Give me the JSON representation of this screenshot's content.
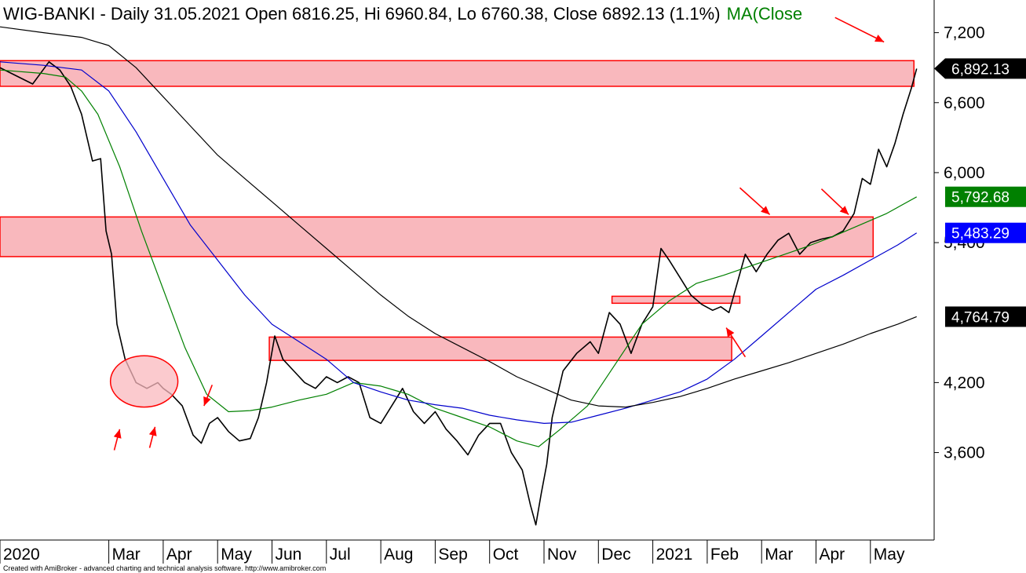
{
  "title": {
    "main": "WIG-BANKI - Daily 31.05.2021 Open 6816.25, Hi 6960.84, Lo 6760.38, Close 6892.13 (1.1%)",
    "ma": "MA(Close"
  },
  "credit": "Created with AmiBroker - advanced charting and technical analysis software. http://www.amibroker.com",
  "colors": {
    "price": "#000000",
    "ma_green": "#008000",
    "ma_blue": "#0000cc",
    "ma_black": "#000000",
    "zone_fill": "#f9b8bd",
    "zone_stroke": "#ff0000",
    "arrow": "#ff0000"
  },
  "chart_data": {
    "type": "line",
    "title": "WIG-BANKI - Daily 31.05.2021",
    "xlabel": "",
    "ylabel": "",
    "ylim": [
      2850,
      7480
    ],
    "y_ticks": [
      {
        "value": 7200,
        "label": "7,200"
      },
      {
        "value": 6600,
        "label": "6,600"
      },
      {
        "value": 6000,
        "label": "6,000"
      },
      {
        "value": 5400,
        "label": "5,400"
      },
      {
        "value": 4200,
        "label": "4,200"
      },
      {
        "value": 3600,
        "label": "3,600"
      }
    ],
    "months": [
      {
        "label": "2020",
        "t": 0
      },
      {
        "label": "Mar",
        "t": 2.0
      },
      {
        "label": "Apr",
        "t": 3.0
      },
      {
        "label": "May",
        "t": 4.0
      },
      {
        "label": "Jun",
        "t": 5.0
      },
      {
        "label": "Jul",
        "t": 6.0
      },
      {
        "label": "Aug",
        "t": 7.0
      },
      {
        "label": "Sep",
        "t": 8.0
      },
      {
        "label": "Oct",
        "t": 9.0
      },
      {
        "label": "Nov",
        "t": 10.0
      },
      {
        "label": "Dec",
        "t": 11.0
      },
      {
        "label": "2021",
        "t": 12.0
      },
      {
        "label": "Feb",
        "t": 13.0
      },
      {
        "label": "Mar",
        "t": 14.0
      },
      {
        "label": "Apr",
        "t": 15.0
      },
      {
        "label": "May",
        "t": 16.0
      }
    ],
    "t_range": [
      0,
      17.5
    ],
    "value_badges": [
      {
        "label": "6,892.13",
        "value": 6892.13,
        "bg": "#000000",
        "fg": "#ffffff",
        "pointer": true
      },
      {
        "label": "5,792.68",
        "value": 5792.68,
        "bg": "#008000",
        "fg": "#ffffff",
        "pointer": false
      },
      {
        "label": "5,483.29",
        "value": 5483.29,
        "bg": "#0000ff",
        "fg": "#ffffff",
        "pointer": false
      },
      {
        "label": "4,764.79",
        "value": 4764.79,
        "bg": "#000000",
        "fg": "#ffffff",
        "pointer": false
      }
    ],
    "series": [
      {
        "key": "price",
        "points": [
          [
            0,
            6900
          ],
          [
            0.3,
            6830
          ],
          [
            0.6,
            6760
          ],
          [
            0.9,
            6950
          ],
          [
            1.1,
            6880
          ],
          [
            1.3,
            6740
          ],
          [
            1.5,
            6500
          ],
          [
            1.7,
            6100
          ],
          [
            1.85,
            6120
          ],
          [
            1.95,
            5500
          ],
          [
            2.05,
            5300
          ],
          [
            2.15,
            4700
          ],
          [
            2.3,
            4400
          ],
          [
            2.5,
            4200
          ],
          [
            2.7,
            4150
          ],
          [
            2.9,
            4200
          ],
          [
            3.0,
            4150
          ],
          [
            3.15,
            4100
          ],
          [
            3.35,
            4000
          ],
          [
            3.55,
            3750
          ],
          [
            3.7,
            3680
          ],
          [
            3.85,
            3850
          ],
          [
            4.0,
            3900
          ],
          [
            4.2,
            3780
          ],
          [
            4.4,
            3700
          ],
          [
            4.6,
            3720
          ],
          [
            4.75,
            3900
          ],
          [
            4.9,
            4200
          ],
          [
            5.05,
            4600
          ],
          [
            5.2,
            4400
          ],
          [
            5.4,
            4300
          ],
          [
            5.6,
            4200
          ],
          [
            5.8,
            4150
          ],
          [
            6.0,
            4250
          ],
          [
            6.2,
            4200
          ],
          [
            6.4,
            4250
          ],
          [
            6.6,
            4200
          ],
          [
            6.8,
            3900
          ],
          [
            7.0,
            3850
          ],
          [
            7.2,
            4000
          ],
          [
            7.4,
            4150
          ],
          [
            7.6,
            3950
          ],
          [
            7.8,
            3850
          ],
          [
            8.0,
            3950
          ],
          [
            8.2,
            3800
          ],
          [
            8.4,
            3700
          ],
          [
            8.6,
            3580
          ],
          [
            8.8,
            3750
          ],
          [
            9.0,
            3850
          ],
          [
            9.2,
            3850
          ],
          [
            9.4,
            3600
          ],
          [
            9.6,
            3450
          ],
          [
            9.75,
            3150
          ],
          [
            9.85,
            2980
          ],
          [
            9.95,
            3250
          ],
          [
            10.05,
            3500
          ],
          [
            10.15,
            3900
          ],
          [
            10.35,
            4300
          ],
          [
            10.6,
            4450
          ],
          [
            10.85,
            4550
          ],
          [
            11.0,
            4450
          ],
          [
            11.2,
            4800
          ],
          [
            11.4,
            4700
          ],
          [
            11.6,
            4450
          ],
          [
            11.8,
            4700
          ],
          [
            12.0,
            4850
          ],
          [
            12.15,
            5350
          ],
          [
            12.3,
            5250
          ],
          [
            12.5,
            5100
          ],
          [
            12.7,
            4950
          ],
          [
            12.9,
            4870
          ],
          [
            13.1,
            4820
          ],
          [
            13.25,
            4850
          ],
          [
            13.4,
            4800
          ],
          [
            13.55,
            5050
          ],
          [
            13.7,
            5300
          ],
          [
            13.9,
            5150
          ],
          [
            14.1,
            5300
          ],
          [
            14.3,
            5420
          ],
          [
            14.5,
            5480
          ],
          [
            14.7,
            5300
          ],
          [
            14.9,
            5400
          ],
          [
            15.1,
            5430
          ],
          [
            15.3,
            5450
          ],
          [
            15.5,
            5500
          ],
          [
            15.7,
            5650
          ],
          [
            15.85,
            5950
          ],
          [
            16.0,
            5900
          ],
          [
            16.15,
            6200
          ],
          [
            16.3,
            6050
          ],
          [
            16.45,
            6250
          ],
          [
            16.6,
            6500
          ],
          [
            16.75,
            6720
          ],
          [
            16.85,
            6892
          ]
        ]
      },
      {
        "key": "ma_green",
        "points": [
          [
            0,
            6880
          ],
          [
            0.8,
            6850
          ],
          [
            1.2,
            6820
          ],
          [
            1.5,
            6700
          ],
          [
            1.8,
            6500
          ],
          [
            2.2,
            6050
          ],
          [
            2.6,
            5500
          ],
          [
            3.0,
            5000
          ],
          [
            3.4,
            4500
          ],
          [
            3.8,
            4100
          ],
          [
            4.2,
            3950
          ],
          [
            4.6,
            3960
          ],
          [
            5.0,
            3990
          ],
          [
            5.5,
            4050
          ],
          [
            6.0,
            4100
          ],
          [
            6.5,
            4200
          ],
          [
            7.0,
            4170
          ],
          [
            7.5,
            4100
          ],
          [
            8.0,
            3980
          ],
          [
            8.5,
            3900
          ],
          [
            9.0,
            3820
          ],
          [
            9.5,
            3700
          ],
          [
            9.9,
            3650
          ],
          [
            10.3,
            3800
          ],
          [
            10.8,
            4000
          ],
          [
            11.3,
            4350
          ],
          [
            11.8,
            4700
          ],
          [
            12.3,
            4900
          ],
          [
            12.8,
            5050
          ],
          [
            13.3,
            5120
          ],
          [
            13.8,
            5200
          ],
          [
            14.3,
            5280
          ],
          [
            14.8,
            5360
          ],
          [
            15.3,
            5450
          ],
          [
            15.8,
            5550
          ],
          [
            16.3,
            5650
          ],
          [
            16.85,
            5792
          ]
        ]
      },
      {
        "key": "ma_blue",
        "points": [
          [
            0,
            6950
          ],
          [
            0.8,
            6920
          ],
          [
            1.5,
            6880
          ],
          [
            2.0,
            6700
          ],
          [
            2.5,
            6350
          ],
          [
            3.0,
            5950
          ],
          [
            3.5,
            5550
          ],
          [
            4.0,
            5250
          ],
          [
            4.5,
            4950
          ],
          [
            5.0,
            4700
          ],
          [
            5.5,
            4550
          ],
          [
            6.0,
            4400
          ],
          [
            6.5,
            4200
          ],
          [
            7.0,
            4120
          ],
          [
            7.5,
            4050
          ],
          [
            8.0,
            4010
          ],
          [
            8.5,
            3980
          ],
          [
            9.0,
            3920
          ],
          [
            9.5,
            3880
          ],
          [
            10.0,
            3850
          ],
          [
            10.5,
            3860
          ],
          [
            11.0,
            3920
          ],
          [
            11.5,
            3980
          ],
          [
            12.0,
            4050
          ],
          [
            12.5,
            4120
          ],
          [
            13.0,
            4230
          ],
          [
            13.5,
            4400
          ],
          [
            14.0,
            4600
          ],
          [
            14.5,
            4800
          ],
          [
            15.0,
            5000
          ],
          [
            15.5,
            5120
          ],
          [
            16.0,
            5250
          ],
          [
            16.5,
            5380
          ],
          [
            16.85,
            5483
          ]
        ]
      },
      {
        "key": "ma_black",
        "points": [
          [
            0,
            7250
          ],
          [
            0.8,
            7200
          ],
          [
            1.5,
            7160
          ],
          [
            2.0,
            7090
          ],
          [
            2.5,
            6900
          ],
          [
            3.0,
            6650
          ],
          [
            3.5,
            6400
          ],
          [
            4.0,
            6150
          ],
          [
            4.5,
            5950
          ],
          [
            5.0,
            5750
          ],
          [
            5.5,
            5550
          ],
          [
            6.0,
            5350
          ],
          [
            6.5,
            5150
          ],
          [
            7.0,
            4950
          ],
          [
            7.5,
            4770
          ],
          [
            8.0,
            4620
          ],
          [
            8.5,
            4500
          ],
          [
            9.0,
            4380
          ],
          [
            9.5,
            4250
          ],
          [
            10.0,
            4150
          ],
          [
            10.5,
            4050
          ],
          [
            11.0,
            4000
          ],
          [
            11.5,
            3990
          ],
          [
            12.0,
            4030
          ],
          [
            12.5,
            4080
          ],
          [
            13.0,
            4150
          ],
          [
            13.5,
            4230
          ],
          [
            14.0,
            4300
          ],
          [
            14.5,
            4370
          ],
          [
            15.0,
            4450
          ],
          [
            15.5,
            4530
          ],
          [
            16.0,
            4620
          ],
          [
            16.5,
            4700
          ],
          [
            16.85,
            4765
          ]
        ]
      }
    ],
    "zones": [
      {
        "t0": 0,
        "t1": 16.8,
        "v_top": 6960,
        "v_bottom": 6740
      },
      {
        "t0": 0,
        "t1": 16.05,
        "v_top": 5620,
        "v_bottom": 5280
      },
      {
        "t0": 11.25,
        "t1": 13.6,
        "v_top": 4940,
        "v_bottom": 4880
      },
      {
        "t0": 4.95,
        "t1": 13.45,
        "v_top": 4590,
        "v_bottom": 4390
      }
    ],
    "ellipses": [
      {
        "t": 2.65,
        "v": 4210,
        "rt": 0.62,
        "rv": 220
      }
    ],
    "arrows": [
      {
        "t0": 15.35,
        "v0": 7330,
        "t1": 16.25,
        "v1": 7120
      },
      {
        "t0": 13.6,
        "v0": 5870,
        "t1": 14.15,
        "v1": 5640
      },
      {
        "t0": 15.1,
        "v0": 5860,
        "t1": 15.6,
        "v1": 5640
      },
      {
        "t0": 13.7,
        "v0": 4420,
        "t1": 13.35,
        "v1": 4670
      },
      {
        "t0": 3.9,
        "v0": 4180,
        "t1": 3.75,
        "v1": 4000
      },
      {
        "t0": 2.1,
        "v0": 3620,
        "t1": 2.2,
        "v1": 3800
      },
      {
        "t0": 2.75,
        "v0": 3640,
        "t1": 2.85,
        "v1": 3820
      }
    ]
  }
}
